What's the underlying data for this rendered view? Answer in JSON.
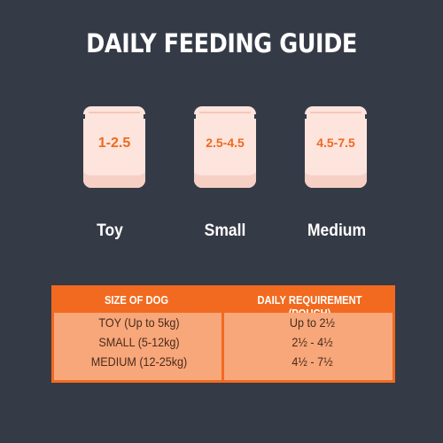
{
  "title": "DAILY FEEDING GUIDE",
  "pouches": [
    {
      "amount": "1-2.5",
      "size": "Toy"
    },
    {
      "amount": "2.5-4.5",
      "size": "Small"
    },
    {
      "amount": "4.5-7.5",
      "size": "Medium"
    }
  ],
  "table": {
    "headers": [
      "SIZE OF DOG",
      "DAILY REQUIREMENT (POUCH)"
    ],
    "rows": [
      [
        "TOY (Up to 5kg)",
        "Up to 2½"
      ],
      [
        "SMALL (5-12kg)",
        "2½ - 4½"
      ],
      [
        "MEDIUM (12-25kg)",
        "4½ - 7½"
      ]
    ]
  },
  "colors": {
    "background": "#353a47",
    "accent": "#f26a1f",
    "pouch": "#fde4dd",
    "table_body": "#f7a77a"
  },
  "icons": [
    "pouch-icon"
  ]
}
